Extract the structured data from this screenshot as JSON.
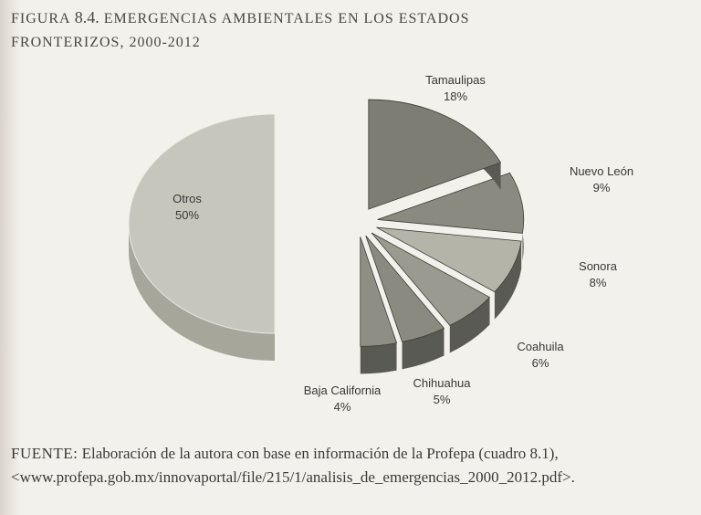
{
  "figure": {
    "number": "8.4.",
    "label": "FIGURA",
    "title_line1": "EMERGENCIAS AMBIENTALES EN LOS ESTADOS",
    "title_line2": "FRONTERIZOS, 2000-2012"
  },
  "chart_data": {
    "type": "pie",
    "title": "",
    "exploded": true,
    "three_d": true,
    "slices": [
      {
        "label": "Otros",
        "value": 50,
        "value_label": "50%"
      },
      {
        "label": "Tamaulipas",
        "value": 18,
        "value_label": "18%"
      },
      {
        "label": "Nuevo León",
        "value": 9,
        "value_label": "9%"
      },
      {
        "label": "Sonora",
        "value": 8,
        "value_label": "8%"
      },
      {
        "label": "Coahuila",
        "value": 6,
        "value_label": "6%"
      },
      {
        "label": "Chihuahua",
        "value": 5,
        "value_label": "5%"
      },
      {
        "label": "Baja California",
        "value": 4,
        "value_label": "4%"
      }
    ],
    "colors": {
      "otros_top": "#c6c6bc",
      "otros_side": "#a6a69a",
      "right_top": "#8e8e84",
      "right_side": "#5a5a54"
    }
  },
  "source": {
    "label": "FUENTE:",
    "text": "Elaboración de la autora con base en información de la Profepa (cuadro 8.1), <www.profepa.gob.mx/innovaportal/file/215/1/analisis_de_emergencias_2000_2012.pdf>."
  }
}
